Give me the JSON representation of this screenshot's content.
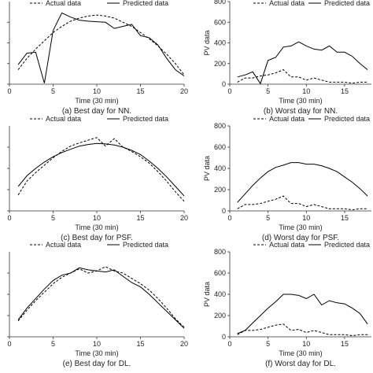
{
  "figure": {
    "panels": [
      {
        "caption": "(a)  Best day for NN.",
        "chart_data": {
          "type": "line",
          "xlabel": "Time (30 min)",
          "ylabel": "",
          "xlim": [
            0,
            20
          ],
          "ylim": [
            0,
            800
          ],
          "xticks": [
            0,
            5,
            10,
            15,
            20
          ],
          "yticks": [],
          "series": [
            {
              "name": "Actual data",
              "style": "dashed",
              "x": [
                1,
                2,
                3,
                4,
                5,
                6,
                7,
                8,
                9,
                10,
                11,
                12,
                13,
                14,
                15,
                16,
                17,
                18,
                19,
                20
              ],
              "y": [
                140,
                250,
                340,
                420,
                500,
                560,
                610,
                640,
                660,
                670,
                660,
                640,
                600,
                560,
                500,
                440,
                370,
                290,
                200,
                90
              ]
            },
            {
              "name": "Predicted data",
              "style": "solid",
              "x": [
                1,
                2,
                3,
                4,
                5,
                6,
                7,
                8,
                9,
                10,
                11,
                12,
                13,
                14,
                15,
                16,
                17,
                18,
                19,
                20
              ],
              "y": [
                190,
                300,
                310,
                10,
                520,
                690,
                650,
                620,
                610,
                605,
                600,
                540,
                560,
                580,
                470,
                450,
                380,
                250,
                140,
                80
              ]
            }
          ]
        }
      },
      {
        "caption": "(b)  Worst day for NN.",
        "chart_data": {
          "type": "line",
          "xlabel": "Time (30 min)",
          "ylabel": "PV data",
          "xlim": [
            0,
            18.5
          ],
          "ylim": [
            0,
            800
          ],
          "xticks": [
            0,
            5,
            10,
            15
          ],
          "yticks": [
            0,
            200,
            400,
            600,
            800
          ],
          "series": [
            {
              "name": "Actual data",
              "style": "dashed",
              "x": [
                1,
                2,
                3,
                4,
                5,
                6,
                7,
                8,
                9,
                10,
                11,
                12,
                13,
                14,
                15,
                16,
                17,
                18
              ],
              "y": [
                20,
                60,
                60,
                80,
                90,
                110,
                140,
                70,
                70,
                40,
                60,
                40,
                20,
                20,
                20,
                10,
                20,
                20
              ]
            },
            {
              "name": "Predicted data",
              "style": "solid",
              "x": [
                1,
                2,
                3,
                4,
                5,
                6,
                7,
                8,
                9,
                10,
                11,
                12,
                13,
                14,
                15,
                16,
                17,
                18
              ],
              "y": [
                70,
                90,
                120,
                5,
                230,
                260,
                360,
                370,
                410,
                370,
                340,
                330,
                370,
                310,
                310,
                270,
                200,
                140
              ]
            }
          ]
        }
      },
      {
        "caption": "(c)  Best day for PSF.",
        "chart_data": {
          "type": "line",
          "xlabel": "Time (30 min)",
          "ylabel": "",
          "xlim": [
            0,
            20
          ],
          "ylim": [
            0,
            800
          ],
          "xticks": [
            0,
            5,
            10,
            15,
            20
          ],
          "yticks": [],
          "series": [
            {
              "name": "Actual data",
              "style": "dashed",
              "x": [
                1,
                2,
                3,
                4,
                5,
                6,
                7,
                8,
                9,
                10,
                11,
                12,
                13,
                14,
                15,
                16,
                17,
                18,
                19,
                20
              ],
              "y": [
                150,
                280,
                360,
                430,
                500,
                560,
                610,
                640,
                665,
                690,
                610,
                680,
                600,
                560,
                510,
                450,
                370,
                280,
                180,
                90
              ]
            },
            {
              "name": "Predicted data",
              "style": "solid",
              "x": [
                1,
                2,
                3,
                4,
                5,
                6,
                7,
                8,
                9,
                10,
                11,
                12,
                13,
                14,
                15,
                16,
                17,
                18,
                19,
                20
              ],
              "y": [
                230,
                330,
                400,
                460,
                510,
                550,
                580,
                610,
                625,
                635,
                630,
                620,
                600,
                570,
                530,
                470,
                400,
                320,
                230,
                140
              ]
            }
          ]
        }
      },
      {
        "caption": "(d)  Worst day for PSF.",
        "chart_data": {
          "type": "line",
          "xlabel": "Time (30 min)",
          "ylabel": "PV data",
          "xlim": [
            0,
            18.5
          ],
          "ylim": [
            0,
            800
          ],
          "xticks": [
            0,
            5,
            10,
            15
          ],
          "yticks": [
            0,
            200,
            400,
            600,
            800
          ],
          "series": [
            {
              "name": "Actual data",
              "style": "dashed",
              "x": [
                1,
                2,
                3,
                4,
                5,
                6,
                7,
                8,
                9,
                10,
                11,
                12,
                13,
                14,
                15,
                16,
                17,
                18
              ],
              "y": [
                20,
                60,
                60,
                70,
                90,
                110,
                140,
                70,
                70,
                40,
                60,
                40,
                20,
                20,
                20,
                10,
                20,
                20
              ]
            },
            {
              "name": "Predicted data",
              "style": "solid",
              "x": [
                1,
                2,
                3,
                4,
                5,
                6,
                7,
                8,
                9,
                10,
                11,
                12,
                13,
                14,
                15,
                16,
                17,
                18
              ],
              "y": [
                80,
                160,
                240,
                310,
                370,
                410,
                430,
                455,
                455,
                440,
                440,
                425,
                400,
                370,
                320,
                270,
                210,
                140
              ]
            }
          ]
        }
      },
      {
        "caption": "(e)  Best day for DL.",
        "chart_data": {
          "type": "line",
          "xlabel": "Time (30 min)",
          "ylabel": "",
          "xlim": [
            0,
            20
          ],
          "ylim": [
            0,
            800
          ],
          "xticks": [
            0,
            5,
            10,
            15,
            20
          ],
          "yticks": [],
          "series": [
            {
              "name": "Actual data",
              "style": "dashed",
              "x": [
                1,
                2,
                3,
                4,
                5,
                6,
                7,
                8,
                9,
                10,
                11,
                12,
                13,
                14,
                15,
                16,
                17,
                18,
                19,
                20
              ],
              "y": [
                150,
                250,
                340,
                420,
                500,
                560,
                600,
                640,
                600,
                620,
                660,
                620,
                600,
                550,
                500,
                440,
                360,
                270,
                170,
                90
              ]
            },
            {
              "name": "Predicted data",
              "style": "solid",
              "x": [
                1,
                2,
                3,
                4,
                5,
                6,
                7,
                8,
                9,
                10,
                11,
                12,
                13,
                14,
                15,
                16,
                17,
                18,
                19,
                20
              ],
              "y": [
                160,
                270,
                360,
                450,
                530,
                580,
                600,
                650,
                630,
                620,
                610,
                630,
                570,
                510,
                470,
                400,
                320,
                240,
                160,
                80
              ]
            }
          ]
        }
      },
      {
        "caption": "(f)  Worst day for DL.",
        "chart_data": {
          "type": "line",
          "xlabel": "Time (30 min)",
          "ylabel": "PV data",
          "xlim": [
            0,
            18.5
          ],
          "ylim": [
            0,
            800
          ],
          "xticks": [
            0,
            5,
            10,
            15
          ],
          "yticks": [
            0,
            200,
            400,
            600,
            800
          ],
          "series": [
            {
              "name": "Actual data",
              "style": "dashed",
              "x": [
                1,
                2,
                3,
                4,
                5,
                6,
                7,
                8,
                9,
                10,
                11,
                12,
                13,
                14,
                15,
                16,
                17,
                18
              ],
              "y": [
                20,
                60,
                60,
                70,
                90,
                110,
                120,
                60,
                70,
                40,
                60,
                40,
                20,
                20,
                20,
                10,
                20,
                20
              ]
            },
            {
              "name": "Predicted data",
              "style": "solid",
              "x": [
                1,
                2,
                3,
                4,
                5,
                6,
                7,
                8,
                9,
                10,
                11,
                12,
                13,
                14,
                15,
                16,
                17,
                18
              ],
              "y": [
                30,
                60,
                130,
                200,
                270,
                330,
                400,
                400,
                390,
                360,
                400,
                300,
                340,
                320,
                310,
                270,
                220,
                120
              ]
            }
          ]
        }
      }
    ]
  },
  "colors": {
    "line": "#000000",
    "axis": "#333333",
    "text": "#222222"
  }
}
